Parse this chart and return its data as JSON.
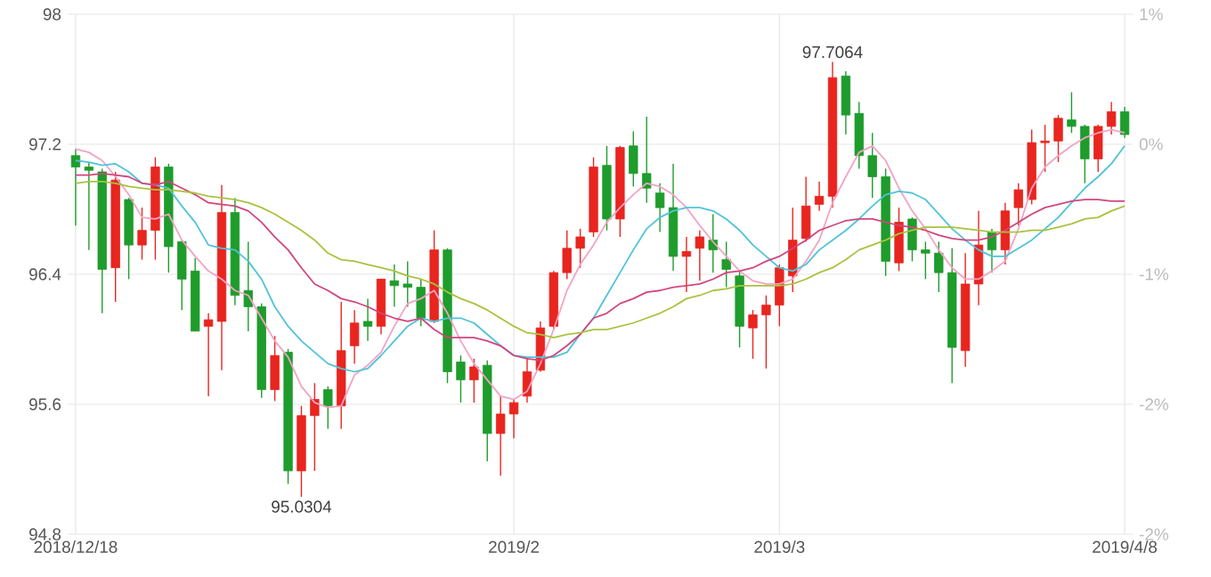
{
  "chart_data": {
    "type": "candlestick",
    "categories": [
      "2018/12/18",
      null,
      null,
      null,
      null,
      null,
      null,
      null,
      null,
      null,
      null,
      null,
      null,
      null,
      null,
      null,
      null,
      null,
      null,
      null,
      null,
      null,
      null,
      null,
      null,
      null,
      null,
      null,
      null,
      null,
      null,
      null,
      null,
      "2019/2",
      null,
      null,
      null,
      null,
      null,
      null,
      null,
      null,
      null,
      null,
      null,
      null,
      null,
      null,
      null,
      null,
      null,
      null,
      null,
      "2019/3",
      null,
      null,
      null,
      null,
      null,
      null,
      null,
      null,
      null,
      null,
      null,
      null,
      null,
      null,
      null,
      null,
      null,
      null,
      null,
      null,
      null,
      null,
      null,
      null,
      null,
      "2019/4/8"
    ],
    "ohlc": [
      [
        97.13,
        97.17,
        96.7,
        97.06
      ],
      [
        97.06,
        97.09,
        96.55,
        97.04
      ],
      [
        97.03,
        97.05,
        96.16,
        96.43
      ],
      [
        96.44,
        97.03,
        96.23,
        96.98
      ],
      [
        96.86,
        96.87,
        96.37,
        96.58
      ],
      [
        96.58,
        96.81,
        96.49,
        96.67
      ],
      [
        96.67,
        97.12,
        96.49,
        97.06
      ],
      [
        97.06,
        97.08,
        96.41,
        96.57
      ],
      [
        96.6,
        96.61,
        96.18,
        96.37
      ],
      [
        96.42,
        96.5,
        96.05,
        96.05
      ],
      [
        96.08,
        96.16,
        95.65,
        96.12
      ],
      [
        96.11,
        96.95,
        95.81,
        96.78
      ],
      [
        96.78,
        96.87,
        96.21,
        96.27
      ],
      [
        96.3,
        96.6,
        96.05,
        96.2
      ],
      [
        96.2,
        96.22,
        95.64,
        95.69
      ],
      [
        95.69,
        96.02,
        95.62,
        95.9
      ],
      [
        95.92,
        95.94,
        95.11,
        95.19
      ],
      [
        95.19,
        95.59,
        95.0304,
        95.53
      ],
      [
        95.53,
        95.73,
        95.19,
        95.63
      ],
      [
        95.69,
        95.71,
        95.45,
        95.59
      ],
      [
        95.59,
        96.23,
        95.45,
        95.93
      ],
      [
        95.96,
        96.18,
        95.85,
        96.1
      ],
      [
        96.11,
        96.25,
        95.99,
        96.08
      ],
      [
        96.08,
        96.37,
        96.03,
        96.37
      ],
      [
        96.36,
        96.46,
        96.2,
        96.33
      ],
      [
        96.34,
        96.48,
        96.2,
        96.32
      ],
      [
        96.32,
        96.37,
        96.08,
        96.13
      ],
      [
        96.11,
        96.67,
        96.1,
        96.55
      ],
      [
        96.55,
        96.56,
        95.73,
        95.8
      ],
      [
        95.86,
        95.9,
        95.61,
        95.75
      ],
      [
        95.75,
        95.88,
        95.61,
        95.83
      ],
      [
        95.84,
        95.87,
        95.25,
        95.42
      ],
      [
        95.42,
        95.65,
        95.16,
        95.54
      ],
      [
        95.54,
        95.63,
        95.39,
        95.61
      ],
      [
        95.65,
        95.89,
        95.61,
        95.8
      ],
      [
        95.81,
        96.11,
        95.8,
        96.07
      ],
      [
        96.08,
        96.42,
        96.06,
        96.41
      ],
      [
        96.41,
        96.67,
        96.37,
        96.56
      ],
      [
        96.56,
        96.68,
        96.44,
        96.63
      ],
      [
        96.66,
        97.12,
        96.63,
        97.06
      ],
      [
        97.07,
        97.19,
        96.67,
        96.74
      ],
      [
        96.74,
        97.19,
        96.63,
        97.18
      ],
      [
        97.19,
        97.28,
        96.94,
        97.02
      ],
      [
        97.02,
        97.37,
        96.84,
        96.93
      ],
      [
        96.9,
        96.96,
        96.66,
        96.81
      ],
      [
        96.81,
        97.08,
        96.42,
        96.51
      ],
      [
        96.51,
        96.63,
        96.29,
        96.54
      ],
      [
        96.56,
        96.67,
        96.36,
        96.63
      ],
      [
        96.61,
        96.77,
        96.41,
        96.55
      ],
      [
        96.49,
        96.6,
        96.32,
        96.43
      ],
      [
        96.39,
        96.42,
        95.95,
        96.08
      ],
      [
        96.07,
        96.18,
        95.88,
        96.15
      ],
      [
        96.15,
        96.27,
        95.82,
        96.21
      ],
      [
        96.21,
        96.46,
        96.08,
        96.44
      ],
      [
        96.39,
        96.81,
        96.29,
        96.61
      ],
      [
        96.62,
        97.0,
        96.6,
        96.82
      ],
      [
        96.83,
        96.97,
        96.79,
        96.88
      ],
      [
        96.88,
        97.7064,
        96.81,
        97.61
      ],
      [
        97.62,
        97.65,
        97.26,
        97.38
      ],
      [
        97.39,
        97.46,
        97.05,
        97.13
      ],
      [
        97.13,
        97.27,
        96.87,
        97.0
      ],
      [
        97.0,
        97.05,
        96.39,
        96.48
      ],
      [
        96.47,
        96.81,
        96.42,
        96.72
      ],
      [
        96.74,
        96.75,
        96.48,
        96.55
      ],
      [
        96.55,
        96.6,
        96.37,
        96.53
      ],
      [
        96.53,
        96.6,
        96.29,
        96.41
      ],
      [
        96.41,
        96.56,
        95.73,
        95.95
      ],
      [
        95.93,
        96.53,
        95.83,
        96.34
      ],
      [
        96.34,
        96.79,
        96.21,
        96.58
      ],
      [
        96.66,
        96.68,
        96.41,
        96.55
      ],
      [
        96.55,
        96.84,
        96.46,
        96.79
      ],
      [
        96.81,
        96.96,
        96.7,
        96.92
      ],
      [
        96.86,
        97.29,
        96.83,
        97.21
      ],
      [
        97.21,
        97.32,
        97.03,
        97.22
      ],
      [
        97.22,
        97.38,
        97.09,
        97.36
      ],
      [
        97.35,
        97.52,
        97.27,
        97.31
      ],
      [
        97.31,
        97.32,
        96.96,
        97.11
      ],
      [
        97.11,
        97.32,
        97.03,
        97.31
      ],
      [
        97.31,
        97.46,
        97.26,
        97.4
      ],
      [
        97.4,
        97.43,
        97.24,
        97.26
      ]
    ],
    "colors": [
      "#1e9c2c",
      "#1e9c2c",
      "#1e9c2c",
      "#e8251f",
      "#1e9c2c",
      "#e8251f",
      "#e8251f",
      "#1e9c2c",
      "#1e9c2c",
      "#1e9c2c",
      "#e8251f",
      "#e8251f",
      "#1e9c2c",
      "#1e9c2c",
      "#1e9c2c",
      "#e8251f",
      "#1e9c2c",
      "#e8251f",
      "#e8251f",
      "#1e9c2c",
      "#e8251f",
      "#e8251f",
      "#1e9c2c",
      "#e8251f",
      "#1e9c2c",
      "#1e9c2c",
      "#1e9c2c",
      "#e8251f",
      "#1e9c2c",
      "#1e9c2c",
      "#e8251f",
      "#1e9c2c",
      "#e8251f",
      "#e8251f",
      "#e8251f",
      "#e8251f",
      "#e8251f",
      "#e8251f",
      "#e8251f",
      "#e8251f",
      "#1e9c2c",
      "#e8251f",
      "#1e9c2c",
      "#1e9c2c",
      "#1e9c2c",
      "#1e9c2c",
      "#e8251f",
      "#e8251f",
      "#1e9c2c",
      "#1e9c2c",
      "#1e9c2c",
      "#e8251f",
      "#e8251f",
      "#e8251f",
      "#e8251f",
      "#e8251f",
      "#e8251f",
      "#e8251f",
      "#1e9c2c",
      "#1e9c2c",
      "#1e9c2c",
      "#1e9c2c",
      "#e8251f",
      "#1e9c2c",
      "#1e9c2c",
      "#1e9c2c",
      "#1e9c2c",
      "#e8251f",
      "#e8251f",
      "#1e9c2c",
      "#e8251f",
      "#e8251f",
      "#e8251f",
      "#e8251f",
      "#e8251f",
      "#1e9c2c",
      "#1e9c2c",
      "#e8251f",
      "#e8251f",
      "#1e9c2c"
    ],
    "series": [
      {
        "type": "line",
        "color": "#f2a3c4",
        "values": [
          97.17,
          97.15,
          97.1,
          97.0,
          96.89,
          96.75,
          96.74,
          96.77,
          96.61,
          96.51,
          96.42,
          96.37,
          96.3,
          96.27,
          96.13,
          95.99,
          95.89,
          95.71,
          95.61,
          95.58,
          95.59,
          95.78,
          95.84,
          95.92,
          96.08,
          96.22,
          96.25,
          96.3,
          96.16,
          95.99,
          95.85,
          95.75,
          95.65,
          95.63,
          95.68,
          95.85,
          96.06,
          96.3,
          96.46,
          96.58,
          96.72,
          96.81,
          96.89,
          96.96,
          96.94,
          96.89,
          96.81,
          96.7,
          96.6,
          96.51,
          96.42,
          96.36,
          96.34,
          96.34,
          96.37,
          96.48,
          96.61,
          96.84,
          97.0,
          97.15,
          97.19,
          97.1,
          96.93,
          96.79,
          96.68,
          96.55,
          96.44,
          96.37,
          96.37,
          96.42,
          96.48,
          96.68,
          96.93,
          97.06,
          97.13,
          97.19,
          97.24,
          97.27,
          97.29,
          97.27
        ]
      },
      {
        "type": "line",
        "color": "#4fc3d9",
        "values": [
          97.1,
          97.09,
          97.07,
          97.08,
          97.03,
          96.96,
          96.95,
          96.93,
          96.82,
          96.72,
          96.58,
          96.56,
          96.55,
          96.48,
          96.37,
          96.2,
          96.08,
          95.99,
          95.92,
          95.85,
          95.82,
          95.8,
          95.82,
          95.9,
          95.99,
          96.08,
          96.13,
          96.11,
          96.13,
          96.13,
          96.1,
          96.03,
          95.96,
          95.9,
          95.89,
          95.89,
          95.89,
          95.92,
          96.03,
          96.13,
          96.27,
          96.41,
          96.55,
          96.68,
          96.75,
          96.79,
          96.81,
          96.81,
          96.79,
          96.74,
          96.67,
          96.58,
          96.51,
          96.44,
          96.42,
          96.46,
          96.55,
          96.61,
          96.67,
          96.74,
          96.82,
          96.89,
          96.91,
          96.9,
          96.86,
          96.77,
          96.68,
          96.61,
          96.55,
          96.51,
          96.51,
          96.56,
          96.61,
          96.68,
          96.75,
          96.84,
          96.93,
          97.0,
          97.08,
          97.19
        ]
      },
      {
        "type": "line",
        "color": "#d2457e",
        "values": [
          97.01,
          97.01,
          97.02,
          97.01,
          97.0,
          96.96,
          96.95,
          96.97,
          96.93,
          96.89,
          96.84,
          96.83,
          96.82,
          96.79,
          96.72,
          96.63,
          96.55,
          96.44,
          96.34,
          96.3,
          96.25,
          96.23,
          96.2,
          96.16,
          96.13,
          96.11,
          96.13,
          96.06,
          96.01,
          96.01,
          96.01,
          95.99,
          95.96,
          95.9,
          95.88,
          95.87,
          95.9,
          95.96,
          96.03,
          96.13,
          96.16,
          96.22,
          96.25,
          96.29,
          96.3,
          96.32,
          96.33,
          96.34,
          96.37,
          96.41,
          96.42,
          96.44,
          96.48,
          96.51,
          96.56,
          96.61,
          96.67,
          96.7,
          96.73,
          96.74,
          96.74,
          96.72,
          96.7,
          96.69,
          96.67,
          96.64,
          96.62,
          96.61,
          96.61,
          96.63,
          96.67,
          96.72,
          96.77,
          96.81,
          96.83,
          96.85,
          96.86,
          96.86,
          96.85,
          96.85
        ]
      },
      {
        "type": "line",
        "color": "#a9c23f",
        "values": [
          96.96,
          96.97,
          96.97,
          96.96,
          96.94,
          96.93,
          96.92,
          96.92,
          96.91,
          96.9,
          96.88,
          96.87,
          96.86,
          96.84,
          96.81,
          96.77,
          96.72,
          96.67,
          96.61,
          96.53,
          96.49,
          96.48,
          96.46,
          96.44,
          96.42,
          96.39,
          96.37,
          96.34,
          96.29,
          96.25,
          96.22,
          96.18,
          96.13,
          96.08,
          96.04,
          96.03,
          96.01,
          96.03,
          96.04,
          96.06,
          96.06,
          96.08,
          96.1,
          96.13,
          96.16,
          96.2,
          96.25,
          96.27,
          96.3,
          96.31,
          96.33,
          96.33,
          96.33,
          96.33,
          96.34,
          96.37,
          96.41,
          96.44,
          96.49,
          96.55,
          96.58,
          96.61,
          96.65,
          96.67,
          96.69,
          96.69,
          96.69,
          96.68,
          96.67,
          96.66,
          96.66,
          96.66,
          96.67,
          96.67,
          96.69,
          96.71,
          96.74,
          96.75,
          96.79,
          96.82
        ]
      }
    ],
    "ylim": [
      94.8,
      98
    ],
    "yticks": [
      94.8,
      95.6,
      96.4,
      97.2,
      98
    ],
    "y2lim": [
      -2.469,
      0.823
    ],
    "y2ticks": [
      {
        "value": -2.469,
        "label": "-2%"
      },
      {
        "value": -1.646,
        "label": "-2%"
      },
      {
        "value": -0.823,
        "label": "-1%"
      },
      {
        "value": 0,
        "label": "0%"
      },
      {
        "value": 0.823,
        "label": "1%"
      }
    ],
    "grid": true,
    "annotations": [
      {
        "text": "95.0304",
        "y": 95.0304
      },
      {
        "text": "97.7064",
        "y": 97.7064
      }
    ]
  }
}
